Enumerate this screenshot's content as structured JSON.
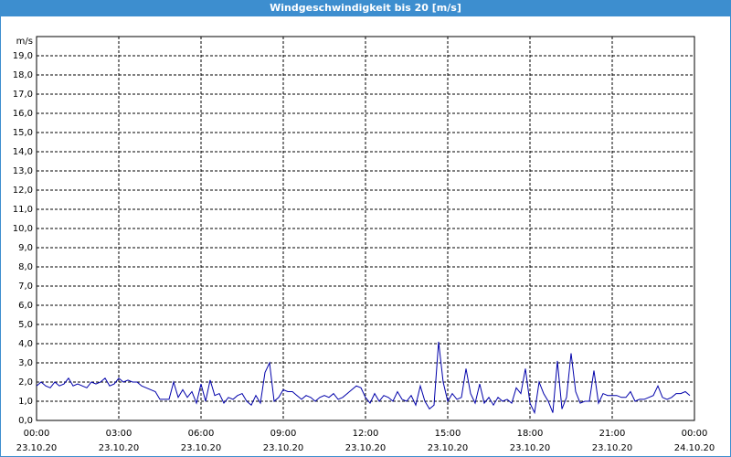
{
  "chart_data": {
    "type": "line",
    "title": "Windgeschwindigkeit bis 20 [m/s]",
    "y_unit": "m/s",
    "color": "#0000aa",
    "grid": true,
    "xlim": [
      0,
      1440
    ],
    "xticks": [
      {
        "value": 0,
        "label": "00:00",
        "date": "23.10.20"
      },
      {
        "value": 180,
        "label": "03:00",
        "date": "23.10.20"
      },
      {
        "value": 360,
        "label": "06:00",
        "date": "23.10.20"
      },
      {
        "value": 540,
        "label": "09:00",
        "date": "23.10.20"
      },
      {
        "value": 720,
        "label": "12:00",
        "date": "23.10.20"
      },
      {
        "value": 900,
        "label": "15:00",
        "date": "23.10.20"
      },
      {
        "value": 1080,
        "label": "18:00",
        "date": "23.10.20"
      },
      {
        "value": 1260,
        "label": "21:00",
        "date": "23.10.20"
      },
      {
        "value": 1440,
        "label": "00:00",
        "date": "24.10.20"
      }
    ],
    "ylim": [
      0,
      20
    ],
    "yticks": [
      {
        "value": 0,
        "label": "0,0"
      },
      {
        "value": 1,
        "label": "1,0"
      },
      {
        "value": 2,
        "label": "2,0"
      },
      {
        "value": 3,
        "label": "3,0"
      },
      {
        "value": 4,
        "label": "4,0"
      },
      {
        "value": 5,
        "label": "5,0"
      },
      {
        "value": 6,
        "label": "6,0"
      },
      {
        "value": 7,
        "label": "7,0"
      },
      {
        "value": 8,
        "label": "8,0"
      },
      {
        "value": 9,
        "label": "9,0"
      },
      {
        "value": 10,
        "label": "10,0"
      },
      {
        "value": 11,
        "label": "11,0"
      },
      {
        "value": 12,
        "label": "12,0"
      },
      {
        "value": 13,
        "label": "13,0"
      },
      {
        "value": 14,
        "label": "14,0"
      },
      {
        "value": 15,
        "label": "15,0"
      },
      {
        "value": 16,
        "label": "16,0"
      },
      {
        "value": 17,
        "label": "17,0"
      },
      {
        "value": 18,
        "label": "18,0"
      },
      {
        "value": 19,
        "label": "19,0"
      }
    ],
    "x": [
      0,
      10,
      20,
      30,
      40,
      50,
      60,
      70,
      80,
      90,
      100,
      110,
      120,
      130,
      140,
      150,
      160,
      170,
      180,
      190,
      200,
      210,
      220,
      230,
      240,
      250,
      260,
      270,
      280,
      290,
      300,
      310,
      320,
      330,
      340,
      350,
      360,
      370,
      380,
      390,
      400,
      410,
      420,
      430,
      440,
      450,
      460,
      470,
      480,
      490,
      500,
      510,
      520,
      530,
      540,
      550,
      560,
      570,
      580,
      590,
      600,
      610,
      620,
      630,
      640,
      650,
      660,
      670,
      680,
      690,
      700,
      710,
      720,
      730,
      740,
      750,
      760,
      770,
      780,
      790,
      800,
      810,
      820,
      830,
      840,
      850,
      860,
      870,
      880,
      890,
      900,
      910,
      920,
      930,
      940,
      950,
      960,
      970,
      980,
      990,
      1000,
      1010,
      1020,
      1030,
      1040,
      1050,
      1060,
      1070,
      1080,
      1090,
      1100,
      1110,
      1120,
      1130,
      1140,
      1150,
      1160,
      1170,
      1180,
      1190,
      1200,
      1210,
      1220,
      1230,
      1240,
      1250,
      1260,
      1270,
      1280,
      1290,
      1300,
      1310,
      1320,
      1330,
      1340,
      1350,
      1360,
      1370,
      1380,
      1390,
      1400,
      1410,
      1420,
      1430
    ],
    "values": [
      1.8,
      2.0,
      1.8,
      1.7,
      2.0,
      1.8,
      1.9,
      2.2,
      1.8,
      1.9,
      1.8,
      1.7,
      2.0,
      1.9,
      2.0,
      2.2,
      1.8,
      1.9,
      2.2,
      2.0,
      2.1,
      2.0,
      2.0,
      1.8,
      1.7,
      1.6,
      1.5,
      1.1,
      1.1,
      1.1,
      2.0,
      1.2,
      1.6,
      1.2,
      1.5,
      0.9,
      1.9,
      1.0,
      2.1,
      1.3,
      1.4,
      0.9,
      1.2,
      1.1,
      1.3,
      1.4,
      1.0,
      0.8,
      1.3,
      0.9,
      2.5,
      3.0,
      1.0,
      1.2,
      1.6,
      1.5,
      1.5,
      1.3,
      1.1,
      1.3,
      1.2,
      1.0,
      1.2,
      1.3,
      1.2,
      1.4,
      1.1,
      1.2,
      1.4,
      1.6,
      1.8,
      1.7,
      1.2,
      0.9,
      1.4,
      1.0,
      1.3,
      1.2,
      1.0,
      1.5,
      1.1,
      1.0,
      1.3,
      0.8,
      1.8,
      1.0,
      0.6,
      0.8,
      4.1,
      2.0,
      1.0,
      1.4,
      1.1,
      1.2,
      2.7,
      1.4,
      0.9,
      1.9,
      0.9,
      1.2,
      0.8,
      1.2,
      1.0,
      1.1,
      0.9,
      1.7,
      1.4,
      2.7,
      0.9,
      0.4,
      2.0,
      1.4,
      1.0,
      0.4,
      3.1,
      0.6,
      1.2,
      3.5,
      1.5,
      0.9,
      1.0,
      1.0,
      2.6,
      0.9,
      1.4,
      1.3,
      1.3,
      1.3,
      1.2,
      1.2,
      1.5,
      1.0,
      1.1,
      1.1,
      1.2,
      1.3,
      1.8,
      1.2,
      1.1,
      1.2,
      1.4,
      1.4,
      1.5,
      1.3
    ]
  }
}
